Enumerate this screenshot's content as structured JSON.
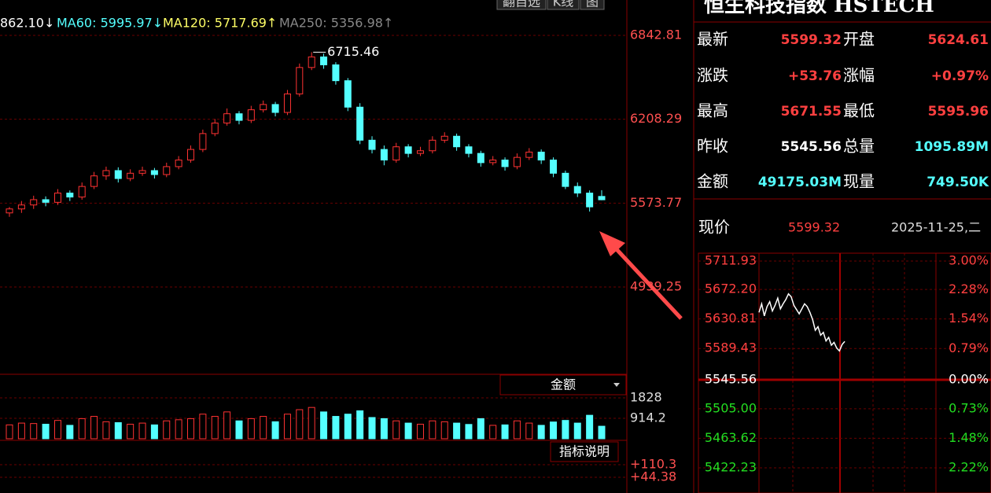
{
  "header": {
    "title": "恒生科技指数 HSTECH"
  },
  "toolbar": [
    "翻自选",
    "K线",
    "图"
  ],
  "ma_legend": [
    {
      "text": "862.10↓",
      "color": "#ffffff"
    },
    {
      "text": "MA60: 5995.97↓",
      "color": "#54ffff"
    },
    {
      "text": "MA120: 5717.69↑",
      "color": "#ffff66"
    },
    {
      "text": "MA250: 5356.98↑",
      "color": "#888888"
    }
  ],
  "chart_data": {
    "type": "candlestick",
    "up_color": "#ff3232",
    "down_color": "#54ffff",
    "open": [
      5500,
      5530,
      5560,
      5600,
      5580,
      5650,
      5620,
      5700,
      5780,
      5820,
      5760,
      5800,
      5820,
      5790,
      5850,
      5900,
      5980,
      6100,
      6180,
      6250,
      6200,
      6280,
      6320,
      6260,
      6400,
      6600,
      6680,
      6620,
      6500,
      6300,
      6050,
      5980,
      5900,
      6000,
      5950,
      5970,
      6050,
      6080,
      6000,
      5950,
      5880,
      5900,
      5850,
      5920,
      5960,
      5900,
      5800,
      5700,
      5650,
      5624.61
    ],
    "high": [
      5545,
      5590,
      5630,
      5625,
      5680,
      5670,
      5730,
      5810,
      5850,
      5845,
      5830,
      5850,
      5840,
      5880,
      5930,
      6010,
      6130,
      6210,
      6290,
      6270,
      6310,
      6350,
      6340,
      6430,
      6630,
      6715.46,
      6705,
      6640,
      6520,
      6330,
      6080,
      6010,
      6030,
      6020,
      6000,
      6080,
      6110,
      6100,
      6020,
      5970,
      5930,
      5920,
      5950,
      5990,
      5980,
      5920,
      5820,
      5730,
      5670,
      5671.55
    ],
    "low": [
      5470,
      5500,
      5530,
      5550,
      5560,
      5590,
      5600,
      5680,
      5750,
      5730,
      5740,
      5780,
      5760,
      5770,
      5830,
      5880,
      5960,
      6080,
      6160,
      6170,
      6180,
      6260,
      6230,
      6240,
      6380,
      6580,
      6590,
      6470,
      6270,
      6020,
      5950,
      5860,
      5880,
      5920,
      5930,
      5950,
      6030,
      5970,
      5920,
      5850,
      5860,
      5820,
      5830,
      5900,
      5870,
      5770,
      5680,
      5620,
      5510,
      5595.96
    ],
    "close": [
      5530,
      5560,
      5600,
      5580,
      5650,
      5620,
      5700,
      5780,
      5820,
      5760,
      5800,
      5820,
      5790,
      5850,
      5900,
      5980,
      6100,
      6180,
      6250,
      6200,
      6280,
      6320,
      6260,
      6400,
      6600,
      6680,
      6620,
      6500,
      6300,
      6050,
      5980,
      5900,
      6000,
      5950,
      5970,
      6050,
      6080,
      6000,
      5950,
      5880,
      5900,
      5850,
      5920,
      5960,
      5900,
      5800,
      5700,
      5650,
      5545.56,
      5599.32
    ],
    "high_label": "6715.46",
    "ylim": [
      4285.2,
      7110.5
    ],
    "yticks": [
      4939.25,
      5573.77,
      6208.29,
      6842.81
    ]
  },
  "volume": {
    "selector": "金额",
    "values": [
      620,
      700,
      680,
      650,
      820,
      600,
      900,
      1000,
      760,
      720,
      650,
      700,
      620,
      800,
      850,
      900,
      1100,
      1000,
      1200,
      800,
      900,
      1000,
      760,
      1100,
      1300,
      1400,
      1200,
      1000,
      1100,
      1250,
      950,
      900,
      800,
      700,
      650,
      800,
      760,
      700,
      640,
      900,
      600,
      620,
      800,
      700,
      600,
      750,
      820,
      700,
      1050,
      560
    ],
    "ylim": [
      0,
      2039
    ],
    "yticks": [
      914.2,
      1828
    ]
  },
  "indicator": {
    "button": "指标说明",
    "ylim": [
      -38,
      155.6
    ],
    "yticks": [
      {
        "value": 110.3,
        "label": "+110.3"
      },
      {
        "value": 44.38,
        "label": "+44.38"
      }
    ]
  },
  "quote": {
    "rows": [
      [
        "最新",
        "5599.32",
        "开盘",
        "5624.61"
      ],
      [
        "涨跌",
        "+53.76",
        "涨幅",
        "+0.97%"
      ],
      [
        "最高",
        "5671.55",
        "最低",
        "5595.96"
      ],
      [
        "昨收",
        "5545.56",
        "总量",
        "1095.89M"
      ],
      [
        "金额",
        "49175.03M",
        "现量",
        "749.50K"
      ]
    ]
  },
  "intraday": {
    "type": "line",
    "label": "现价",
    "price": "5599.32",
    "date": "2025-11-25,二",
    "color": "#ffffff",
    "x": [
      0,
      5,
      10,
      15,
      20,
      25,
      30,
      35,
      40,
      45,
      50,
      55,
      60,
      65,
      70,
      75,
      80,
      85,
      90,
      95,
      100,
      105,
      110,
      115,
      120,
      125,
      130,
      135,
      140,
      145,
      150,
      155,
      160
    ],
    "values": [
      5640,
      5652,
      5635,
      5648,
      5655,
      5642,
      5650,
      5660,
      5645,
      5652,
      5658,
      5666,
      5662,
      5650,
      5644,
      5638,
      5645,
      5652,
      5648,
      5640,
      5630,
      5615,
      5620,
      5608,
      5612,
      5600,
      5605,
      5594,
      5598,
      5590,
      5586,
      5595,
      5599.32
    ],
    "xlim": [
      0,
      330
    ],
    "ylim": [
      5386.98,
      5722.95
    ],
    "yticks": [
      {
        "value": 5711.93,
        "label": "5711.93"
      },
      {
        "value": 5672.2,
        "label": "5672.20"
      },
      {
        "value": 5630.81,
        "label": "5630.81"
      },
      {
        "value": 5589.43,
        "label": "5589.43"
      },
      {
        "value": 5545.56,
        "label": "5545.56"
      },
      {
        "value": 5505,
        "label": "5505.00"
      },
      {
        "value": 5463.62,
        "label": "5463.62"
      },
      {
        "value": 5422.23,
        "label": "5422.23"
      }
    ],
    "y2lim": [
      -2.86,
      3.2
    ],
    "y2ticks": [
      {
        "value": 3,
        "label": "3.00%"
      },
      {
        "value": 2.28,
        "label": "2.28%"
      },
      {
        "value": 1.54,
        "label": "1.54%"
      },
      {
        "value": 0.79,
        "label": "0.79%"
      },
      {
        "value": 0,
        "label": "0.00%"
      },
      {
        "value": -0.73,
        "label": "0.73%"
      },
      {
        "value": -1.48,
        "label": "1.48%"
      },
      {
        "value": -2.22,
        "label": "2.22%"
      }
    ]
  }
}
